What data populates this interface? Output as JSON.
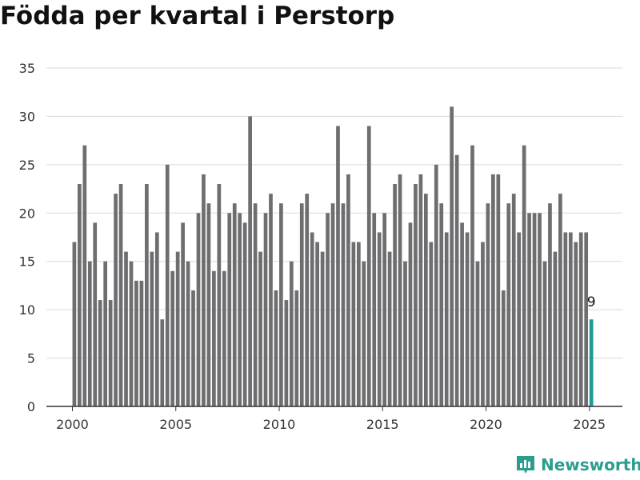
{
  "chart_data": {
    "type": "bar",
    "title": "Födda per kvartal i Perstorp",
    "xlabel": "",
    "ylabel": "",
    "x_start": 2000,
    "x_step": 0.25,
    "values": [
      17,
      23,
      27,
      15,
      19,
      11,
      15,
      11,
      22,
      23,
      16,
      15,
      13,
      13,
      23,
      16,
      18,
      9,
      25,
      14,
      16,
      19,
      15,
      12,
      20,
      24,
      21,
      14,
      23,
      14,
      20,
      21,
      20,
      19,
      30,
      21,
      16,
      20,
      22,
      12,
      21,
      11,
      15,
      12,
      21,
      22,
      18,
      17,
      16,
      20,
      21,
      29,
      21,
      24,
      17,
      17,
      15,
      29,
      20,
      18,
      20,
      16,
      23,
      24,
      15,
      19,
      23,
      24,
      22,
      17,
      25,
      21,
      18,
      31,
      26,
      19,
      18,
      27,
      15,
      17,
      21,
      24,
      24,
      12,
      21,
      22,
      18,
      27,
      20,
      20,
      20,
      15,
      21,
      16,
      22,
      18,
      18,
      17,
      18,
      18,
      9
    ],
    "ylim": [
      0,
      35
    ],
    "yticks": [
      "0",
      "5",
      "10",
      "15",
      "20",
      "25",
      "30",
      "35"
    ],
    "xticks": [
      "2000",
      "2005",
      "2010",
      "2015",
      "2020",
      "2025"
    ],
    "grid": true,
    "colors": {
      "bar": "#6e6d70",
      "highlight": "#1e9c92",
      "grid": "#d9d9d9",
      "axis": "#333333"
    },
    "highlight_last": true,
    "last_value_label": "9"
  },
  "branding": {
    "name": "Newsworthy",
    "icon": "bar-chart-logo-icon"
  }
}
